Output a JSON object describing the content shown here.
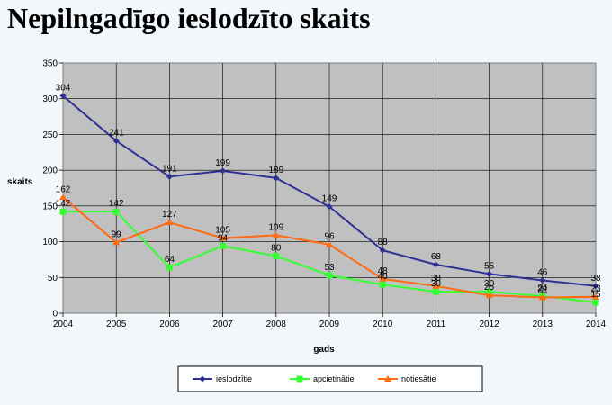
{
  "page": {
    "title": "Nepilngadīgo ieslodzīto skaits"
  },
  "chart_data": {
    "type": "line",
    "title": "",
    "xlabel": "gads",
    "ylabel": "skaits",
    "x": [
      2004,
      2005,
      2006,
      2007,
      2008,
      2009,
      2010,
      2011,
      2012,
      2013,
      2014
    ],
    "ylim": [
      0,
      350
    ],
    "yticks": [
      0,
      50,
      100,
      150,
      200,
      250,
      300,
      350
    ],
    "grid": true,
    "legend_position": "bottom",
    "background": "#c0c0c0",
    "series": [
      {
        "name": "ieslodzītie",
        "color": "#2e3192",
        "marker": "diamond",
        "values": [
          304,
          241,
          191,
          199,
          189,
          149,
          88,
          68,
          55,
          46,
          38
        ]
      },
      {
        "name": "apcietinātie",
        "color": "#33ff33",
        "marker": "square",
        "values": [
          142,
          142,
          64,
          94,
          80,
          53,
          40,
          30,
          30,
          24,
          15
        ]
      },
      {
        "name": "notiesātie",
        "color": "#ff6a13",
        "marker": "triangle",
        "values": [
          162,
          99,
          127,
          105,
          109,
          96,
          48,
          38,
          25,
          22,
          23
        ]
      }
    ]
  }
}
